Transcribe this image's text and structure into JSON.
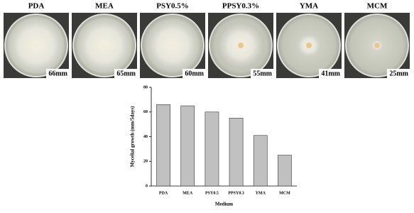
{
  "panels": [
    {
      "label": "PDA",
      "size": "66mm"
    },
    {
      "label": "MEA",
      "size": "65mm"
    },
    {
      "label": "PSY0.5%",
      "size": "60mm"
    },
    {
      "label": "PPSY0.3%",
      "size": "55mm"
    },
    {
      "label": "YMA",
      "size": "41mm"
    },
    {
      "label": "MCM",
      "size": "25mm"
    }
  ],
  "chart_data": {
    "type": "bar",
    "categories": [
      "PDA",
      "MEA",
      "PSY0.5",
      "PPSY0.3",
      "YMA",
      "MCM"
    ],
    "values": [
      66,
      65,
      60,
      55,
      41,
      25
    ],
    "color": "#c0c0c0",
    "ylim": [
      0,
      80
    ],
    "yticks": [
      0,
      20,
      40,
      60,
      80
    ],
    "xlabel": "Medium",
    "ylabel": "Mycelial growth (mm/5days)"
  }
}
